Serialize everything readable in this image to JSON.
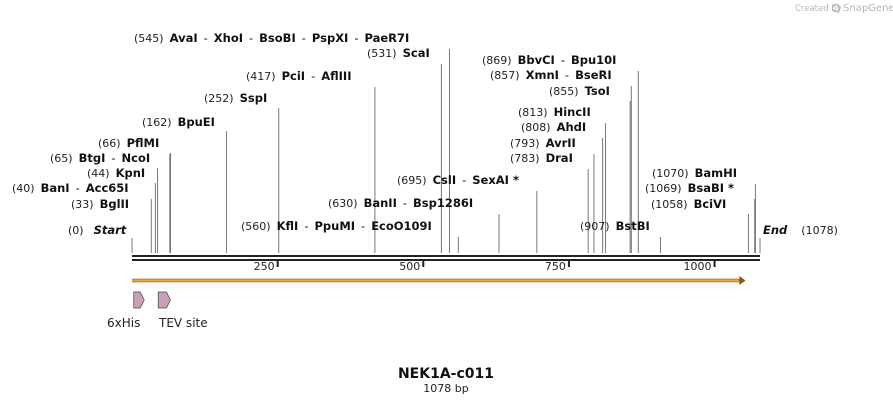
{
  "brand": {
    "text": "Created by",
    "name": "SnapGene"
  },
  "sequence": {
    "name": "NEK1A-c011",
    "length_label": "1078 bp",
    "length": 1078
  },
  "ends": [
    {
      "pos_label": "(0)",
      "name": "Start"
    },
    {
      "pos_label": "(1078)",
      "name": "End"
    }
  ],
  "ruler": {
    "ticks": [
      250,
      500,
      750,
      1000
    ]
  },
  "sites": [
    {
      "pos_label": "(33)",
      "names": [
        "BglII"
      ],
      "cut": 33
    },
    {
      "pos_label": "(40)",
      "names": [
        "BanI",
        "Acc65I"
      ],
      "cut": 40
    },
    {
      "pos_label": "(44)",
      "names": [
        "KpnI"
      ],
      "cut": 44
    },
    {
      "pos_label": "(65)",
      "names": [
        "BtgI",
        "NcoI"
      ],
      "cut": 65
    },
    {
      "pos_label": "(66)",
      "names": [
        "PflMI"
      ],
      "cut": 66
    },
    {
      "pos_label": "(162)",
      "names": [
        "BpuEI"
      ],
      "cut": 162
    },
    {
      "pos_label": "(252)",
      "names": [
        "SspI"
      ],
      "cut": 252
    },
    {
      "pos_label": "(417)",
      "names": [
        "PciI",
        "AflIII"
      ],
      "cut": 417
    },
    {
      "pos_label": "(545)",
      "names": [
        "AvaI",
        "XhoI",
        "BsoBI",
        "PspXI",
        "PaeR7I"
      ],
      "cut": 545
    },
    {
      "pos_label": "(531)",
      "names": [
        "ScaI"
      ],
      "cut": 531
    },
    {
      "pos_label": "(560)",
      "names": [
        "KflI",
        "PpuMI",
        "EcoO109I"
      ],
      "cut": 560
    },
    {
      "pos_label": "(630)",
      "names": [
        "BanII",
        "Bsp1286I"
      ],
      "cut": 630
    },
    {
      "pos_label": "(695)",
      "names": [
        "CslI",
        "SexAI *"
      ],
      "cut": 695
    },
    {
      "pos_label": "(783)",
      "names": [
        "DraI"
      ],
      "cut": 783
    },
    {
      "pos_label": "(793)",
      "names": [
        "AvrII"
      ],
      "cut": 793
    },
    {
      "pos_label": "(808)",
      "names": [
        "AhdI"
      ],
      "cut": 808
    },
    {
      "pos_label": "(813)",
      "names": [
        "HincII"
      ],
      "cut": 813
    },
    {
      "pos_label": "(855)",
      "names": [
        "TsoI"
      ],
      "cut": 855
    },
    {
      "pos_label": "(857)",
      "names": [
        "XmnI",
        "BseRI"
      ],
      "cut": 857
    },
    {
      "pos_label": "(869)",
      "names": [
        "BbvCI",
        "Bpu10I"
      ],
      "cut": 869
    },
    {
      "pos_label": "(907)",
      "names": [
        "BstBI"
      ],
      "cut": 907
    },
    {
      "pos_label": "(1058)",
      "names": [
        "BciVI"
      ],
      "cut": 1058
    },
    {
      "pos_label": "(1069)",
      "names": [
        "BsaBI *"
      ],
      "cut": 1069
    },
    {
      "pos_label": "(1070)",
      "names": [
        "BamHI"
      ],
      "cut": 1070
    }
  ],
  "features": [
    {
      "name": "6xHis",
      "start": 3,
      "end": 21
    },
    {
      "name": "TEV site",
      "start": 45,
      "end": 66
    },
    {
      "name": "",
      "start": 1,
      "end": 1053,
      "type": "orf"
    }
  ],
  "colors": {
    "orf": "#f5a623",
    "feature": "#c9a0b8",
    "backbone": "#222222"
  }
}
